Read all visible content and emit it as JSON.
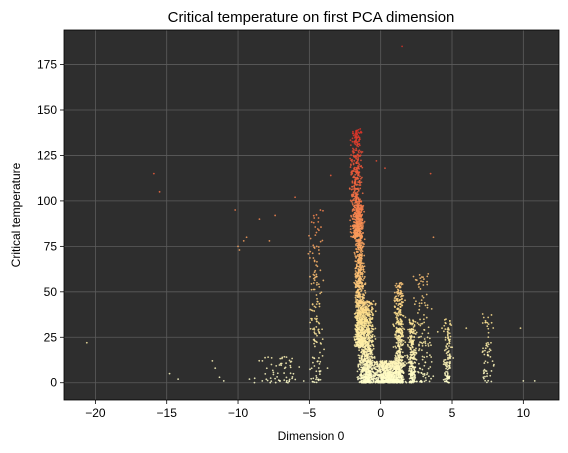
{
  "chart_data": {
    "type": "scatter",
    "title": "Critical temperature on first PCA dimension",
    "xlabel": "Dimension 0",
    "ylabel": "Critical temperature",
    "xlim": [
      -22.2,
      12.5
    ],
    "ylim": [
      -9.5,
      194
    ],
    "xticks": [
      -20,
      -15,
      -10,
      -5,
      0,
      5,
      10
    ],
    "xtick_labels": [
      "−20",
      "−15",
      "−10",
      "−5",
      "0",
      "5",
      "10"
    ],
    "yticks": [
      0,
      25,
      50,
      75,
      100,
      125,
      150,
      175
    ],
    "ytick_labels": [
      "0",
      "25",
      "50",
      "75",
      "100",
      "125",
      "150",
      "175"
    ],
    "grid": true,
    "background": "#2e2e2e",
    "colormap": [
      "#ffffcc",
      "#fee391",
      "#fdb066",
      "#f46d43",
      "#d73027"
    ],
    "clusters": [
      {
        "x_center": -1.7,
        "x_spread": 0.55,
        "y_min": 80,
        "y_max": 140,
        "count": 450
      },
      {
        "x_center": -1.5,
        "x_spread": 0.5,
        "y_min": 20,
        "y_max": 100,
        "count": 900
      },
      {
        "x_center": -1.0,
        "x_spread": 0.8,
        "y_min": 0,
        "y_max": 45,
        "count": 900
      },
      {
        "x_center": 1.3,
        "x_spread": 0.5,
        "y_min": 0,
        "y_max": 55,
        "count": 450
      },
      {
        "x_center": 2.2,
        "x_spread": 0.4,
        "y_min": 0,
        "y_max": 35,
        "count": 250
      },
      {
        "x_center": 0.5,
        "x_spread": 1.5,
        "y_min": 0,
        "y_max": 12,
        "count": 700
      },
      {
        "x_center": -4.5,
        "x_spread": 0.8,
        "y_min": 0,
        "y_max": 95,
        "count": 150
      },
      {
        "x_center": 4.7,
        "x_spread": 0.4,
        "y_min": 0,
        "y_max": 35,
        "count": 120
      },
      {
        "x_center": 7.5,
        "x_spread": 0.6,
        "y_min": 0,
        "y_max": 38,
        "count": 60
      },
      {
        "x_center": 3.0,
        "x_spread": 1.0,
        "y_min": 0,
        "y_max": 60,
        "count": 120
      },
      {
        "x_center": -7.0,
        "x_spread": 2.5,
        "y_min": 0,
        "y_max": 15,
        "count": 60
      }
    ],
    "outliers": [
      {
        "x": -20.6,
        "y": 22
      },
      {
        "x": -15.9,
        "y": 115
      },
      {
        "x": -15.5,
        "y": 105
      },
      {
        "x": -14.8,
        "y": 5
      },
      {
        "x": -14.2,
        "y": 2
      },
      {
        "x": -11.8,
        "y": 12
      },
      {
        "x": -11.6,
        "y": 8
      },
      {
        "x": -11.3,
        "y": 3
      },
      {
        "x": -11.0,
        "y": 1
      },
      {
        "x": -10.2,
        "y": 95
      },
      {
        "x": -10.0,
        "y": 75
      },
      {
        "x": -9.9,
        "y": 73
      },
      {
        "x": -9.6,
        "y": 78
      },
      {
        "x": -9.4,
        "y": 80
      },
      {
        "x": -9.2,
        "y": 2
      },
      {
        "x": -8.5,
        "y": 90
      },
      {
        "x": -8.3,
        "y": 1
      },
      {
        "x": -7.8,
        "y": 78
      },
      {
        "x": -7.4,
        "y": 92
      },
      {
        "x": -6.5,
        "y": 0
      },
      {
        "x": -6.0,
        "y": 102
      },
      {
        "x": -3.5,
        "y": 114
      },
      {
        "x": -0.3,
        "y": 122
      },
      {
        "x": 0.3,
        "y": 118
      },
      {
        "x": 1.5,
        "y": 185
      },
      {
        "x": 3.5,
        "y": 115
      },
      {
        "x": 3.7,
        "y": 80
      },
      {
        "x": 4.0,
        "y": 28
      },
      {
        "x": 4.3,
        "y": 30
      },
      {
        "x": 6.0,
        "y": 30
      },
      {
        "x": 9.8,
        "y": 30
      },
      {
        "x": 10.0,
        "y": 1
      },
      {
        "x": 10.8,
        "y": 1
      }
    ]
  }
}
